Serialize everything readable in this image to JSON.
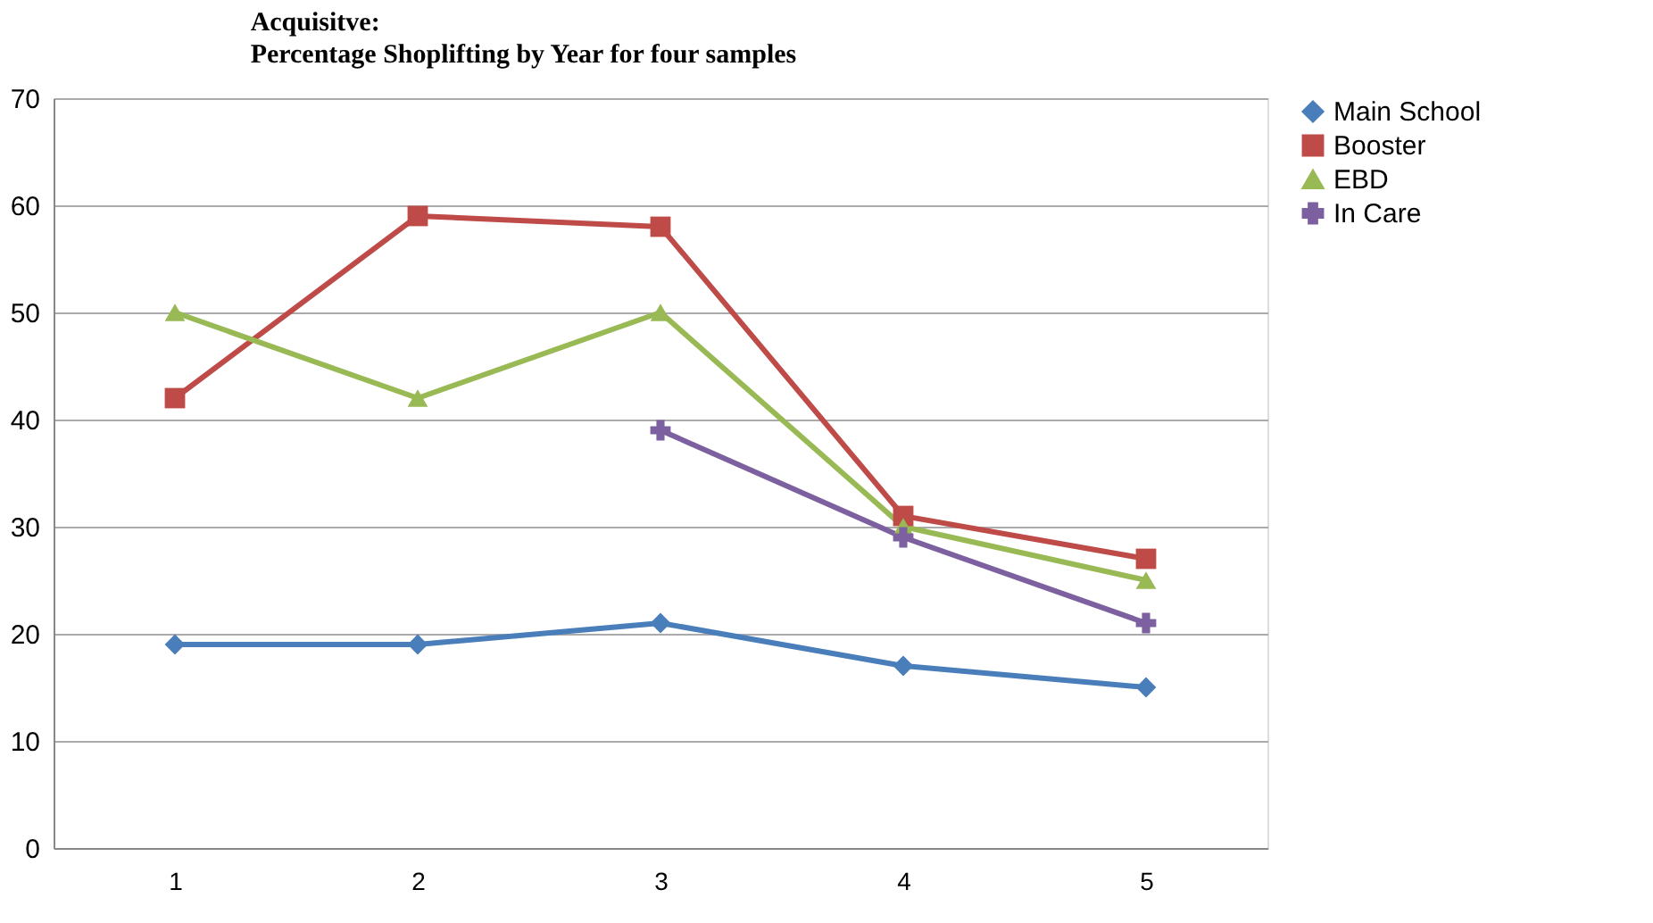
{
  "chart_data": {
    "type": "line",
    "title": "Acquisitve:",
    "subtitle": "Percentage Shoplifting by Year for four samples",
    "categories": [
      "1",
      "2",
      "3",
      "4",
      "5"
    ],
    "series": [
      {
        "name": "Main School",
        "color": "#4a7ebb",
        "marker": "diamond",
        "values": [
          19,
          19,
          21,
          17,
          15
        ]
      },
      {
        "name": "Booster",
        "color": "#be4b48",
        "marker": "square",
        "values": [
          42,
          59,
          58,
          31,
          27
        ]
      },
      {
        "name": "EBD",
        "color": "#98b954",
        "marker": "triangle",
        "values": [
          50,
          42,
          50,
          30,
          25
        ]
      },
      {
        "name": "In Care",
        "color": "#7d60a0",
        "marker": "cross",
        "values": [
          null,
          null,
          39,
          29,
          21
        ]
      }
    ],
    "ylim": [
      0,
      70
    ],
    "yticks": [
      0,
      10,
      20,
      30,
      40,
      50,
      60,
      70
    ],
    "grid": "y",
    "legend": "right",
    "line_style": "solid"
  }
}
